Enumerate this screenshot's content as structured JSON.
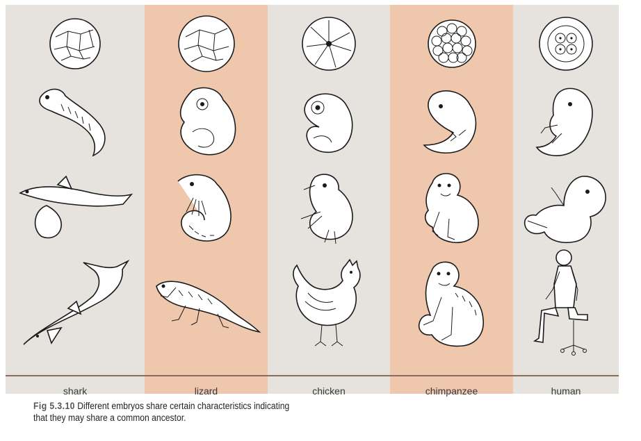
{
  "columns": [
    {
      "id": "shark",
      "label": "shark",
      "bg": "#e6e3de"
    },
    {
      "id": "lizard",
      "label": "lizard",
      "bg": "#efc7ad"
    },
    {
      "id": "chicken",
      "label": "chicken",
      "bg": "#e6e3de"
    },
    {
      "id": "chimpanzee",
      "label": "chimpanzee",
      "bg": "#efc7ad"
    },
    {
      "id": "human",
      "label": "human",
      "bg": "#e6e3de"
    }
  ],
  "caption": {
    "fig_label": "Fig 5.3.10",
    "line1": "Different embryos share certain characteristics indicating",
    "line2": "that they may share a common ancestor."
  }
}
